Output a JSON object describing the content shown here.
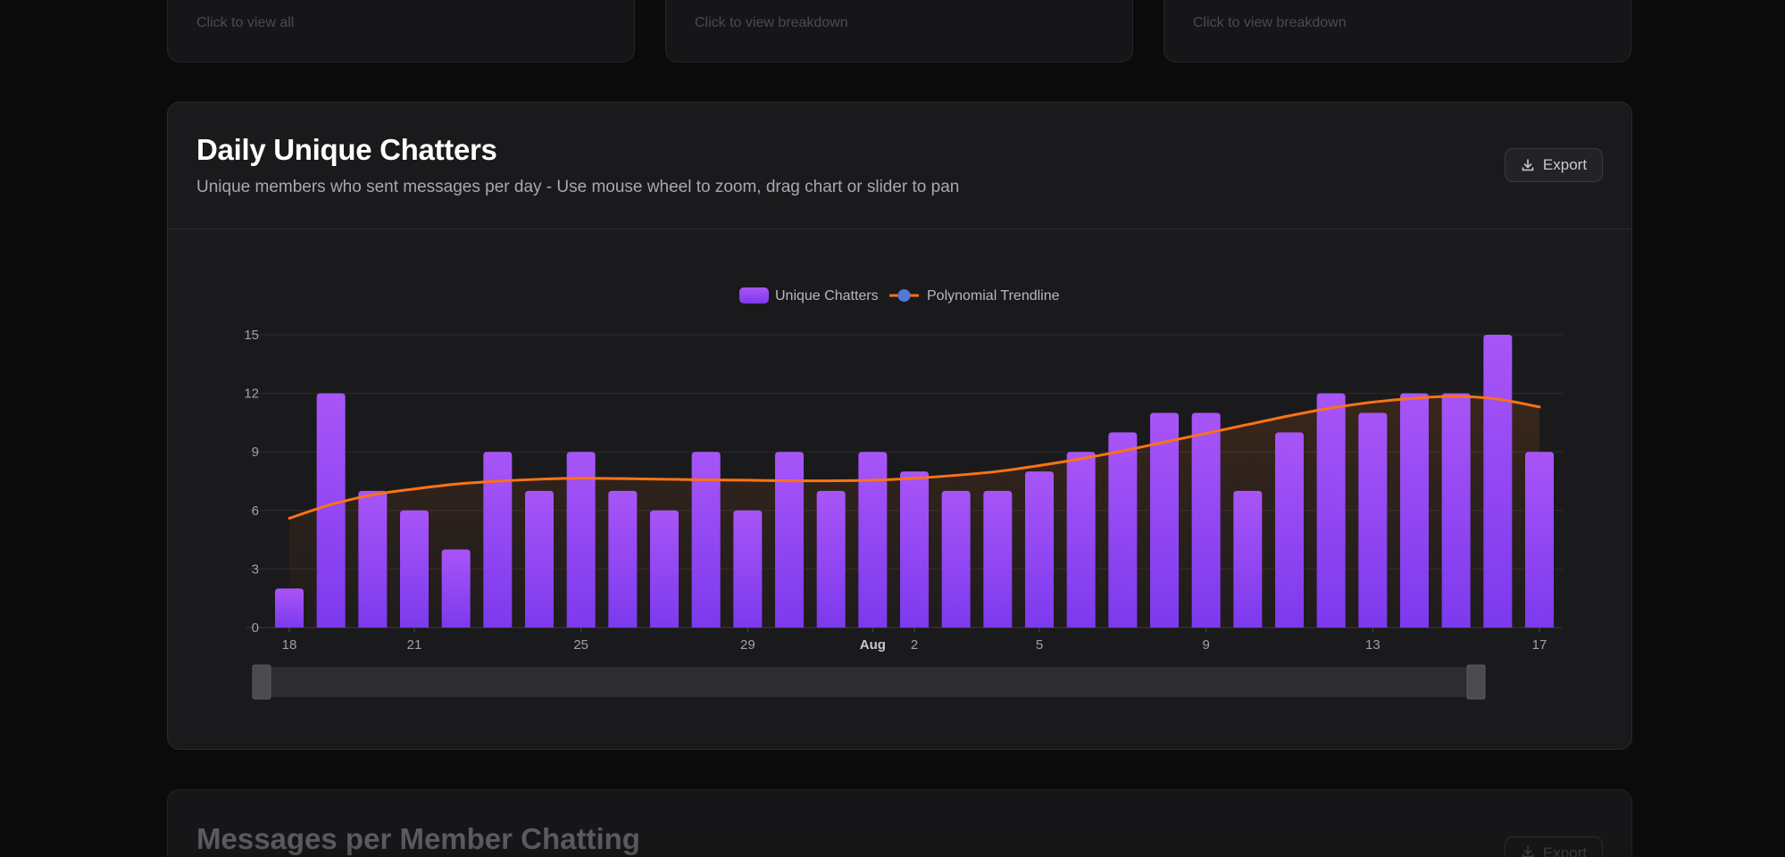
{
  "top_cards": [
    {
      "hint": "Click to view all"
    },
    {
      "hint": "Click to view breakdown"
    },
    {
      "hint": "Click to view breakdown"
    }
  ],
  "chart_card": {
    "title": "Daily Unique Chatters",
    "subtitle": "Unique members who sent messages per day - Use mouse wheel to zoom, drag chart or slider to pan",
    "export_label": "Export"
  },
  "next_card": {
    "title": "Messages per Member Chatting",
    "export_label": "Export"
  },
  "colors": {
    "bar_top": "#a855f7",
    "bar_bottom": "#7c3aed",
    "trendline": "#f97316",
    "trend_legend_dot": "#4f7ad8"
  },
  "chart_data": {
    "type": "bar",
    "legend": {
      "position": "top-center",
      "items": [
        "Unique Chatters",
        "Polynomial Trendline"
      ]
    },
    "x_ticks": [
      {
        "label": "18",
        "day": 0
      },
      {
        "label": "21",
        "day": 3
      },
      {
        "label": "25",
        "day": 7
      },
      {
        "label": "29",
        "day": 11
      },
      {
        "label": "Aug",
        "day": 14,
        "bold": true
      },
      {
        "label": "2",
        "day": 15
      },
      {
        "label": "5",
        "day": 18
      },
      {
        "label": "9",
        "day": 22
      },
      {
        "label": "13",
        "day": 26
      },
      {
        "label": "17",
        "day": 30
      }
    ],
    "ylim": [
      0,
      15
    ],
    "yticks": [
      0,
      3,
      6,
      9,
      12,
      15
    ],
    "grid": true,
    "series": [
      {
        "name": "Unique Chatters",
        "type": "bar",
        "x": [
          "Jul 18",
          "Jul 19",
          "Jul 20",
          "Jul 21",
          "Jul 22",
          "Jul 23",
          "Jul 24",
          "Jul 25",
          "Jul 26",
          "Jul 27",
          "Jul 28",
          "Jul 29",
          "Jul 30",
          "Jul 31",
          "Aug 1",
          "Aug 2",
          "Aug 3",
          "Aug 4",
          "Aug 5",
          "Aug 6",
          "Aug 7",
          "Aug 8",
          "Aug 9",
          "Aug 10",
          "Aug 11",
          "Aug 12",
          "Aug 13",
          "Aug 14",
          "Aug 15",
          "Aug 16",
          "Aug 17"
        ],
        "values": [
          2,
          12,
          7,
          6,
          4,
          9,
          7,
          9,
          7,
          6,
          9,
          6,
          9,
          7,
          9,
          8,
          7,
          7,
          8,
          9,
          10,
          11,
          11,
          7,
          10,
          12,
          11,
          12,
          12,
          15,
          9
        ]
      },
      {
        "name": "Polynomial Trendline",
        "type": "line",
        "values": [
          5.6,
          6.3,
          6.8,
          7.1,
          7.35,
          7.5,
          7.6,
          7.65,
          7.63,
          7.6,
          7.57,
          7.55,
          7.52,
          7.52,
          7.55,
          7.65,
          7.8,
          8.0,
          8.3,
          8.65,
          9.05,
          9.5,
          9.95,
          10.4,
          10.85,
          11.25,
          11.55,
          11.75,
          11.85,
          11.7,
          11.3
        ]
      }
    ],
    "dataZoom": {
      "start": 0,
      "end": 1
    }
  }
}
